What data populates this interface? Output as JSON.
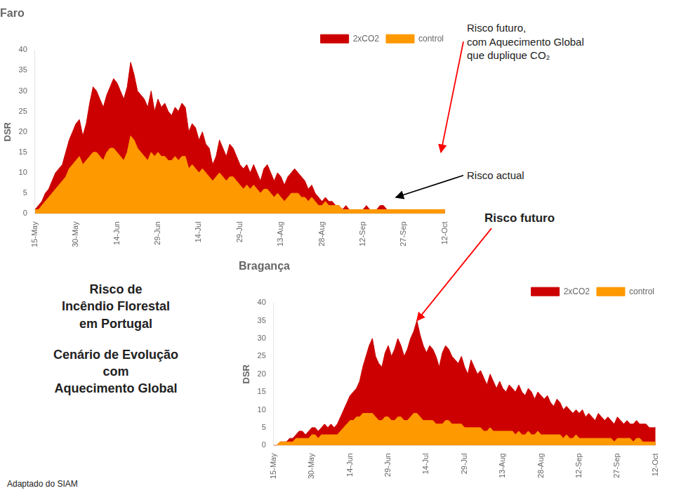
{
  "title": [
    "Risco de",
    "Incêndio Florestal",
    "em Portugal"
  ],
  "subtitle": [
    "Cenário de Evolução",
    "com",
    "Aquecimento Global"
  ],
  "footer": "Adaptado do SIAM",
  "chart_data": [
    {
      "type": "area",
      "title": "Faro",
      "y_label": "DSR",
      "categories": [
        "15-May",
        null,
        null,
        null,
        null,
        null,
        null,
        null,
        null,
        null,
        null,
        null,
        "30-May",
        null,
        null,
        null,
        null,
        null,
        null,
        null,
        null,
        null,
        null,
        null,
        "14-Jun",
        null,
        null,
        null,
        null,
        null,
        null,
        null,
        null,
        null,
        null,
        null,
        "29-Jun",
        null,
        null,
        null,
        null,
        null,
        null,
        null,
        null,
        null,
        null,
        null,
        "14-Jul",
        null,
        null,
        null,
        null,
        null,
        null,
        null,
        null,
        null,
        null,
        null,
        "29-Jul",
        null,
        null,
        null,
        null,
        null,
        null,
        null,
        null,
        null,
        null,
        null,
        "13-Aug",
        null,
        null,
        null,
        null,
        null,
        null,
        null,
        null,
        null,
        null,
        null,
        "28-Aug",
        null,
        null,
        null,
        null,
        null,
        null,
        null,
        null,
        null,
        null,
        null,
        "12-Sep",
        null,
        null,
        null,
        null,
        null,
        null,
        null,
        null,
        null,
        null,
        null,
        "27-Sep",
        null,
        null,
        null,
        null,
        null,
        null,
        null,
        null,
        null,
        null,
        null,
        "12-Oct"
      ],
      "series": [
        {
          "name": "2xCO2",
          "color": "#cc0000",
          "values": [
            1,
            2,
            3,
            5,
            6,
            8,
            10,
            11,
            12,
            15,
            18,
            20,
            22,
            23,
            19,
            22,
            27,
            31,
            30,
            28,
            26,
            29,
            31,
            33,
            32,
            30,
            28,
            31,
            37,
            34,
            30,
            29,
            28,
            26,
            30,
            25,
            28,
            26,
            27,
            25,
            24,
            26,
            25,
            27,
            26,
            20,
            22,
            21,
            18,
            20,
            17,
            16,
            12,
            14,
            18,
            16,
            14,
            17,
            16,
            14,
            12,
            11,
            12,
            10,
            12,
            10,
            8,
            11,
            12,
            10,
            8,
            10,
            9,
            7,
            9,
            10,
            11,
            10,
            9,
            8,
            6,
            7,
            5,
            4,
            3,
            4,
            3,
            3,
            2,
            2,
            1,
            2,
            1,
            1,
            1,
            1,
            1,
            2,
            1,
            1,
            1,
            2,
            2,
            1,
            1,
            1,
            1,
            1,
            1,
            1,
            1,
            1,
            1,
            1,
            1,
            1,
            1,
            1,
            1,
            1,
            1
          ]
        },
        {
          "name": "control",
          "color": "#ff9900",
          "values": [
            1,
            1,
            2,
            3,
            4,
            5,
            6,
            7,
            8,
            9,
            11,
            12,
            13,
            14,
            12,
            13,
            14,
            15,
            15,
            14,
            13,
            15,
            16,
            16,
            15,
            14,
            13,
            15,
            19,
            18,
            16,
            15,
            14,
            13,
            15,
            14,
            15,
            14,
            14,
            13,
            13,
            14,
            13,
            14,
            14,
            11,
            12,
            11,
            10,
            11,
            10,
            9,
            8,
            9,
            10,
            9,
            8,
            9,
            9,
            8,
            7,
            6,
            7,
            6,
            7,
            6,
            5,
            6,
            6,
            5,
            4,
            5,
            4,
            3,
            4,
            5,
            5,
            5,
            4,
            4,
            3,
            4,
            3,
            2,
            2,
            3,
            2,
            2,
            2,
            2,
            1,
            1,
            1,
            1,
            1,
            1,
            1,
            1,
            1,
            1,
            1,
            1,
            1,
            1,
            1,
            1,
            1,
            1,
            1,
            1,
            1,
            1,
            1,
            1,
            1,
            1,
            1,
            1,
            1,
            1,
            1
          ]
        }
      ],
      "ylim": [
        0,
        40
      ],
      "yticks": [
        0,
        5,
        10,
        15,
        20,
        25,
        30,
        35,
        40
      ],
      "grid": false,
      "legend": "upper right",
      "annotations": [
        {
          "text": [
            "Risco futuro,",
            "com Aquecimento Global",
            "que duplique CO₂"
          ],
          "color": "red"
        },
        {
          "text": [
            "Risco actual"
          ],
          "color": "black"
        }
      ]
    },
    {
      "type": "area",
      "title": "Bragança",
      "y_label": "DSR",
      "categories": [
        "15-May",
        null,
        null,
        null,
        null,
        null,
        null,
        null,
        null,
        null,
        null,
        null,
        "30-May",
        null,
        null,
        null,
        null,
        null,
        null,
        null,
        null,
        null,
        null,
        null,
        "14-Jun",
        null,
        null,
        null,
        null,
        null,
        null,
        null,
        null,
        null,
        null,
        null,
        "29-Jun",
        null,
        null,
        null,
        null,
        null,
        null,
        null,
        null,
        null,
        null,
        null,
        "14-Jul",
        null,
        null,
        null,
        null,
        null,
        null,
        null,
        null,
        null,
        null,
        null,
        "29-Jul",
        null,
        null,
        null,
        null,
        null,
        null,
        null,
        null,
        null,
        null,
        null,
        "13-Aug",
        null,
        null,
        null,
        null,
        null,
        null,
        null,
        null,
        null,
        null,
        null,
        "28-Aug",
        null,
        null,
        null,
        null,
        null,
        null,
        null,
        null,
        null,
        null,
        null,
        "12-Sep",
        null,
        null,
        null,
        null,
        null,
        null,
        null,
        null,
        null,
        null,
        null,
        "27-Sep",
        null,
        null,
        null,
        null,
        null,
        null,
        null,
        null,
        null,
        null,
        null,
        "12-Oct"
      ],
      "series": [
        {
          "name": "2xCO2",
          "color": "#cc0000",
          "values": [
            0,
            0,
            1,
            1,
            1,
            2,
            2,
            3,
            4,
            4,
            3,
            4,
            5,
            5,
            4,
            5,
            6,
            5,
            6,
            5,
            6,
            8,
            10,
            12,
            14,
            15,
            16,
            18,
            22,
            25,
            28,
            30,
            25,
            23,
            22,
            26,
            28,
            25,
            27,
            30,
            28,
            25,
            27,
            30,
            32,
            35,
            31,
            28,
            26,
            28,
            27,
            25,
            22,
            26,
            28,
            27,
            25,
            24,
            23,
            25,
            22,
            20,
            24,
            22,
            20,
            21,
            19,
            17,
            20,
            18,
            16,
            18,
            16,
            15,
            17,
            16,
            15,
            17,
            15,
            14,
            16,
            15,
            13,
            15,
            14,
            13,
            14,
            12,
            11,
            13,
            12,
            10,
            11,
            10,
            9,
            10,
            9,
            10,
            8,
            9,
            8,
            7,
            9,
            8,
            7,
            8,
            7,
            6,
            8,
            7,
            6,
            7,
            6,
            6,
            7,
            6,
            6,
            6,
            5,
            5,
            5
          ]
        },
        {
          "name": "control",
          "color": "#ff9900",
          "values": [
            0,
            0,
            1,
            1,
            1,
            1,
            1,
            2,
            2,
            2,
            2,
            2,
            3,
            3,
            2,
            3,
            3,
            3,
            3,
            3,
            3,
            4,
            5,
            6,
            7,
            7,
            8,
            8,
            9,
            9,
            9,
            9,
            8,
            7,
            7,
            8,
            8,
            7,
            7,
            8,
            8,
            7,
            7,
            8,
            9,
            9,
            8,
            7,
            7,
            7,
            7,
            6,
            6,
            6,
            7,
            7,
            6,
            6,
            6,
            6,
            5,
            5,
            5,
            5,
            5,
            5,
            4,
            4,
            5,
            4,
            4,
            4,
            4,
            4,
            4,
            4,
            3,
            4,
            3,
            3,
            4,
            3,
            3,
            4,
            3,
            3,
            3,
            3,
            3,
            3,
            3,
            2,
            3,
            2,
            2,
            3,
            2,
            2,
            2,
            2,
            2,
            2,
            2,
            2,
            2,
            2,
            2,
            1,
            2,
            2,
            2,
            2,
            2,
            1,
            2,
            2,
            1,
            1,
            1,
            1,
            1
          ]
        }
      ],
      "ylim": [
        0,
        40
      ],
      "yticks": [
        0,
        5,
        10,
        15,
        20,
        25,
        30,
        35,
        40
      ],
      "grid": false,
      "legend": "upper right",
      "annotations": [
        {
          "text": [
            "Risco futuro"
          ],
          "color": "red"
        }
      ]
    }
  ]
}
